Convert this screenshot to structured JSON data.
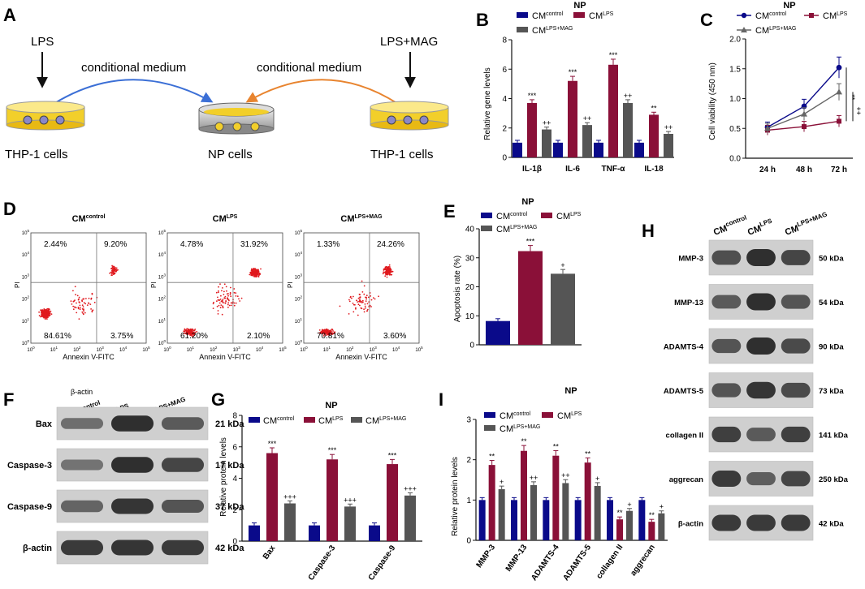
{
  "colors": {
    "control": "#0a0a8a",
    "lps": "#8a1038",
    "mag": "#555555",
    "dots": "#e0191e",
    "blue_arrow": "#3b6fd6",
    "orange_arrow": "#e8842f",
    "dish": "#f2cf2a"
  },
  "panelA": {
    "letter": "A",
    "lps": "LPS",
    "lpsmag": "LPS+MAG",
    "medium_left": "conditional medium",
    "medium_right": "conditional medium",
    "thp_left": "THP-1 cells",
    "np": "NP cells",
    "thp_right": "THP-1 cells"
  },
  "legend": {
    "cm": "CM",
    "control": "control",
    "lps": "LPS",
    "mag": "LPS+MAG"
  },
  "panelB": {
    "letter": "B",
    "title": "NP",
    "ylabel": "Relative gene levels"
  },
  "panelC": {
    "letter": "C",
    "title": "NP",
    "ylabel": "Cell viability (450 nm)"
  },
  "panelD": {
    "letter": "D",
    "plots": [
      {
        "title_sup": "control",
        "ul": "2.44%",
        "ur": "9.20%",
        "ll": "84.61%",
        "lr": "3.75%"
      },
      {
        "title_sup": "LPS",
        "ul": "4.78%",
        "ur": "31.92%",
        "ll": "61.20%",
        "lr": "2.10%"
      },
      {
        "title_sup": "LPS+MAG",
        "ul": "1.33%",
        "ur": "24.26%",
        "ll": "70.81%",
        "lr": "3.60%"
      }
    ],
    "xlabel": "Annexin V-FITC",
    "ylabel": "PI",
    "ticks": [
      "10",
      "0",
      "1",
      "2",
      "3",
      "4",
      "5"
    ]
  },
  "panelE": {
    "letter": "E",
    "title": "NP",
    "ylabel": "Apoptosis rate (%)"
  },
  "panelF": {
    "letter": "F",
    "overlap": "β-actin",
    "lanes": [
      "control",
      "LPS",
      "LPS+MAG"
    ],
    "rows": [
      {
        "label": "Bax",
        "kda": "21 kDa"
      },
      {
        "label": "Caspase-3",
        "kda": "17 kDa"
      },
      {
        "label": "Caspase-9",
        "kda": "37 kDa"
      },
      {
        "label": "β-actin",
        "kda": "42 kDa"
      }
    ]
  },
  "panelG": {
    "letter": "G",
    "title": "NP",
    "ylabel": "Relative protein levels"
  },
  "panelH": {
    "letter": "H",
    "lanes": [
      "control",
      "LPS",
      "LPS+MAG"
    ],
    "rows": [
      {
        "label": "MMP-3",
        "kda": "50 kDa"
      },
      {
        "label": "MMP-13",
        "kda": "54 kDa"
      },
      {
        "label": "ADAMTS-4",
        "kda": "90 kDa"
      },
      {
        "label": "ADAMTS-5",
        "kda": "73 kDa"
      },
      {
        "label": "collagen II",
        "kda": "141 kDa"
      },
      {
        "label": "aggrecan",
        "kda": "250 kDa"
      },
      {
        "label": "β-actin",
        "kda": "42 kDa"
      }
    ]
  },
  "panelI": {
    "letter": "I",
    "title": "NP",
    "ylabel": "Relative protein levels"
  },
  "chart_data": [
    {
      "id": "B",
      "type": "bar",
      "title": "NP",
      "ylabel": "Relative gene levels",
      "ylim": [
        0,
        8
      ],
      "yticks": [
        "0",
        "2",
        "4",
        "6",
        "8"
      ],
      "categories": [
        "IL-1β",
        "IL-6",
        "TNF-α",
        "IL-18"
      ],
      "series": [
        {
          "name": "CMcontrol",
          "values": [
            1,
            1,
            1,
            1
          ]
        },
        {
          "name": "CMLPS",
          "values": [
            3.7,
            5.2,
            6.3,
            2.9
          ]
        },
        {
          "name": "CMLPS+MAG",
          "values": [
            1.9,
            2.2,
            3.7,
            1.6
          ]
        }
      ],
      "annotations": {
        "CMLPS": [
          "***",
          "***",
          "***",
          "**"
        ],
        "CMLPS+MAG": [
          "++",
          "++",
          "++",
          "++"
        ]
      }
    },
    {
      "id": "C",
      "type": "line",
      "title": "NP",
      "ylabel": "Cell viability (450 nm)",
      "ylim": [
        0,
        2
      ],
      "yticks": [
        "0.0",
        "0.5",
        "1.0",
        "1.5",
        "2.0"
      ],
      "categories": [
        "24 h",
        "48 h",
        "72 h"
      ],
      "series": [
        {
          "name": "CMcontrol",
          "values": [
            0.52,
            0.87,
            1.52
          ]
        },
        {
          "name": "CMLPS",
          "values": [
            0.47,
            0.53,
            0.62
          ]
        },
        {
          "name": "CMLPS+MAG",
          "values": [
            0.5,
            0.74,
            1.11
          ]
        }
      ],
      "annotations": [
        "**",
        "++"
      ]
    },
    {
      "id": "E",
      "type": "bar",
      "title": "NP",
      "ylabel": "Apoptosis rate (%)",
      "ylim": [
        0,
        40
      ],
      "yticks": [
        "0",
        "10",
        "20",
        "30",
        "40"
      ],
      "categories": [
        ""
      ],
      "series": [
        {
          "name": "CMcontrol",
          "values": [
            8.2
          ]
        },
        {
          "name": "CMLPS",
          "values": [
            32.3
          ]
        },
        {
          "name": "CMLPS+MAG",
          "values": [
            24.5
          ]
        }
      ],
      "annotations": {
        "CMLPS": [
          "***"
        ],
        "CMLPS+MAG": [
          "+"
        ]
      }
    },
    {
      "id": "G",
      "type": "bar",
      "title": "NP",
      "ylabel": "Relative protein levels",
      "ylim": [
        0,
        8
      ],
      "yticks": [
        "0",
        "2",
        "4",
        "6",
        "8"
      ],
      "categories": [
        "Bax",
        "Caspase-3",
        "Caspase-9"
      ],
      "series": [
        {
          "name": "CMcontrol",
          "values": [
            1,
            1,
            1
          ]
        },
        {
          "name": "CMLPS",
          "values": [
            5.6,
            5.2,
            4.9
          ]
        },
        {
          "name": "CMLPS+MAG",
          "values": [
            2.4,
            2.2,
            2.9
          ]
        }
      ],
      "annotations": {
        "CMLPS": [
          "***",
          "***",
          "***"
        ],
        "CMLPS+MAG": [
          "+++",
          "+++",
          "+++"
        ]
      }
    },
    {
      "id": "I",
      "type": "bar",
      "title": "NP",
      "ylabel": "Relative protein levels",
      "ylim": [
        0,
        3
      ],
      "yticks": [
        "0",
        "1",
        "2",
        "3"
      ],
      "categories": [
        "MMP-3",
        "MMP-13",
        "ADAMTS-4",
        "ADAMTS-5",
        "collagen II",
        "aggrecan"
      ],
      "series": [
        {
          "name": "CMcontrol",
          "values": [
            1,
            1,
            1,
            1,
            1,
            1
          ]
        },
        {
          "name": "CMLPS",
          "values": [
            1.87,
            2.22,
            2.1,
            1.93,
            0.52,
            0.46
          ]
        },
        {
          "name": "CMLPS+MAG",
          "values": [
            1.27,
            1.37,
            1.42,
            1.35,
            0.73,
            0.67
          ]
        }
      ],
      "annotations": {
        "CMLPS": [
          "**",
          "**",
          "**",
          "**",
          "**",
          "**"
        ],
        "CMLPS+MAG": [
          "+",
          "++",
          "++",
          "+",
          "+",
          "+"
        ]
      }
    }
  ]
}
